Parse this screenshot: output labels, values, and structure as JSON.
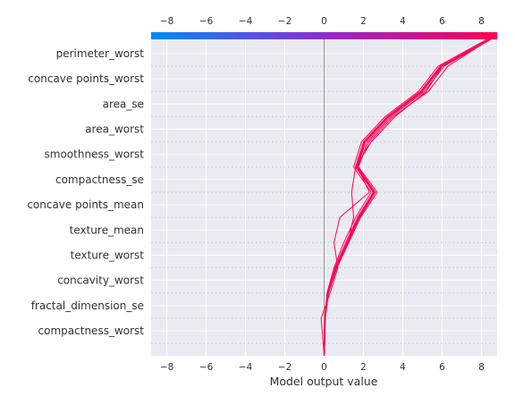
{
  "chart_data": {
    "type": "line",
    "title": "",
    "xlabel": "Model output value",
    "ylabel": "",
    "xlim": [
      -8.8,
      8.8
    ],
    "xticks": [
      -8,
      -6,
      -4,
      -2,
      0,
      2,
      4,
      6,
      8
    ],
    "features": [
      "perimeter_worst",
      "concave points_worst",
      "area_se",
      "area_worst",
      "smoothness_worst",
      "compactness_se",
      "concave points_mean",
      "texture_mean",
      "texture_worst",
      "concavity_worst",
      "fractal_dimension_se",
      "compactness_worst"
    ],
    "base_value": 0,
    "colorbar": {
      "low_color": "#008bfb",
      "mid_color": "#8f2ad1",
      "high_color": "#ff0052"
    },
    "line_color": "#ff0052",
    "grid": true,
    "background": "#eaeaf2",
    "series": [
      {
        "values": [
          0,
          0.02,
          0.05,
          0.2,
          0.6,
          1.2,
          1.8,
          2.6,
          1.7,
          2.1,
          3.3,
          5.0,
          6.0,
          8.8
        ]
      },
      {
        "values": [
          0,
          0.01,
          0.04,
          0.18,
          0.55,
          1.1,
          1.7,
          2.5,
          1.6,
          2.0,
          3.2,
          4.9,
          5.9,
          8.7
        ]
      },
      {
        "values": [
          0,
          0.03,
          0.06,
          0.22,
          0.65,
          1.25,
          1.85,
          2.7,
          1.75,
          2.2,
          3.4,
          5.1,
          6.1,
          8.8
        ]
      },
      {
        "values": [
          0,
          0.02,
          0.05,
          0.21,
          0.62,
          1.18,
          1.78,
          2.55,
          1.65,
          2.05,
          3.25,
          4.95,
          5.95,
          8.75
        ]
      },
      {
        "values": [
          0,
          0.01,
          0.03,
          0.15,
          0.5,
          1.0,
          1.6,
          2.4,
          1.5,
          1.9,
          3.1,
          4.8,
          5.8,
          8.6
        ]
      },
      {
        "values": [
          0,
          0.02,
          0.05,
          0.2,
          0.58,
          1.15,
          1.75,
          2.5,
          1.62,
          2.02,
          3.22,
          4.92,
          5.92,
          8.7
        ]
      },
      {
        "values": [
          0,
          -0.05,
          -0.15,
          0.3,
          0.7,
          0.5,
          0.8,
          2.3,
          1.7,
          2.3,
          3.5,
          5.3,
          6.3,
          8.7
        ]
      },
      {
        "values": [
          0,
          0.03,
          0.06,
          0.22,
          0.6,
          1.2,
          1.5,
          1.4,
          1.6,
          2.4,
          3.6,
          5.2,
          6.0,
          8.8
        ]
      },
      {
        "values": [
          0,
          0.02,
          0.05,
          0.2,
          0.62,
          1.2,
          1.8,
          2.6,
          1.7,
          2.1,
          3.3,
          5.0,
          6.0,
          8.8
        ]
      }
    ]
  }
}
